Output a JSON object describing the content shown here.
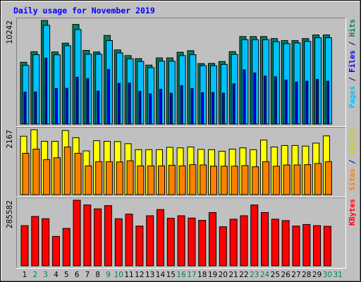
{
  "chart_data": {
    "type": "bar",
    "title": "Daily usage for November 2019",
    "days": [
      "1",
      "2",
      "3",
      "4",
      "5",
      "6",
      "7",
      "8",
      "9",
      "10",
      "11",
      "12",
      "13",
      "14",
      "15",
      "16",
      "17",
      "18",
      "19",
      "20",
      "21",
      "22",
      "23",
      "24",
      "25",
      "26",
      "27",
      "28",
      "29",
      "30",
      "31"
    ],
    "weekend_days": [
      "2",
      "3",
      "9",
      "10",
      "16",
      "17",
      "23",
      "24",
      "30",
      "31"
    ],
    "panels": [
      {
        "name": "traffic",
        "axis_label": "10242",
        "legend": [
          {
            "text": "Pages",
            "color": "#00c0ff"
          },
          {
            "text": " / ",
            "color": "#0000a0"
          },
          {
            "text": "Files",
            "color": "#0000ff"
          },
          {
            "text": " / ",
            "color": "#0000a0"
          },
          {
            "text": "Hits",
            "color": "#00805c"
          }
        ],
        "max": 10242,
        "series": [
          {
            "name": "Hits",
            "color": "#008060",
            "values": [
              6110,
              7150,
              10242,
              7130,
              8000,
              9850,
              7280,
              7130,
              8760,
              7330,
              6770,
              6470,
              5830,
              6540,
              6540,
              7100,
              7250,
              5980,
              6000,
              6180,
              7160,
              8650,
              8650,
              8650,
              8450,
              8250,
              8250,
              8450,
              8810,
              8810,
              0
            ]
          },
          {
            "name": "Files",
            "color": "#00c0ff",
            "values": [
              5800,
              6860,
              9760,
              6850,
              7750,
              9350,
              6900,
              6900,
              8250,
              7030,
              6450,
              6180,
              5580,
              6220,
              6220,
              6770,
              6860,
              5780,
              5770,
              5900,
              6880,
              8340,
              8340,
              8340,
              8150,
              7950,
              8020,
              8170,
              8530,
              8530,
              0
            ]
          },
          {
            "name": "Pages",
            "color": "#0000ff",
            "values": [
              3160,
              3170,
              6520,
              3520,
              3540,
              4630,
              4500,
              3260,
              5390,
              4020,
              4060,
              3240,
              2990,
              3440,
              3050,
              3800,
              3530,
              3100,
              3130,
              3060,
              3980,
              5360,
              5050,
              4750,
              4680,
              4350,
              4160,
              4240,
              4420,
              4240,
              0
            ]
          }
        ]
      },
      {
        "name": "visitors",
        "axis_label": "2167",
        "legend": [
          {
            "text": "Sites",
            "color": "#ff8000"
          },
          {
            "text": " / ",
            "color": "#0000a0"
          },
          {
            "text": "Visits",
            "color": "#d0d000"
          }
        ],
        "max": 2167,
        "series": [
          {
            "name": "Visits",
            "color": "#ffff00",
            "values": [
              1950,
              2167,
              1780,
              1780,
              2140,
              1900,
              1460,
              1800,
              1780,
              1770,
              1700,
              1500,
              1500,
              1500,
              1580,
              1560,
              1590,
              1510,
              1500,
              1450,
              1520,
              1560,
              1500,
              1820,
              1590,
              1640,
              1640,
              1620,
              1720,
              1960,
              0
            ]
          },
          {
            "name": "Sites",
            "color": "#ff8000",
            "values": [
              1380,
              1520,
              1170,
              1230,
              1590,
              1380,
              960,
              1100,
              1100,
              1090,
              1130,
              960,
              960,
              960,
              980,
              960,
              1000,
              990,
              950,
              950,
              950,
              970,
              930,
              1100,
              950,
              990,
              990,
              1000,
              1040,
              1100,
              0
            ]
          }
        ]
      },
      {
        "name": "kbytes",
        "axis_label": "285582",
        "legend": [
          {
            "text": "KBytes",
            "color": "#ff0000"
          }
        ],
        "max": 285582,
        "series": [
          {
            "name": "KBytes",
            "color": "#ff0000",
            "values": [
              175000,
              215000,
              205000,
              128000,
              163000,
              285582,
              265000,
              248000,
              262000,
              205000,
              225000,
              173000,
              218000,
              245000,
              207000,
              218000,
              208000,
              198000,
              232000,
              170000,
              203000,
              218000,
              265000,
              232000,
              203000,
              197000,
              173000,
              180000,
              175000,
              172000,
              0
            ]
          }
        ]
      }
    ]
  }
}
